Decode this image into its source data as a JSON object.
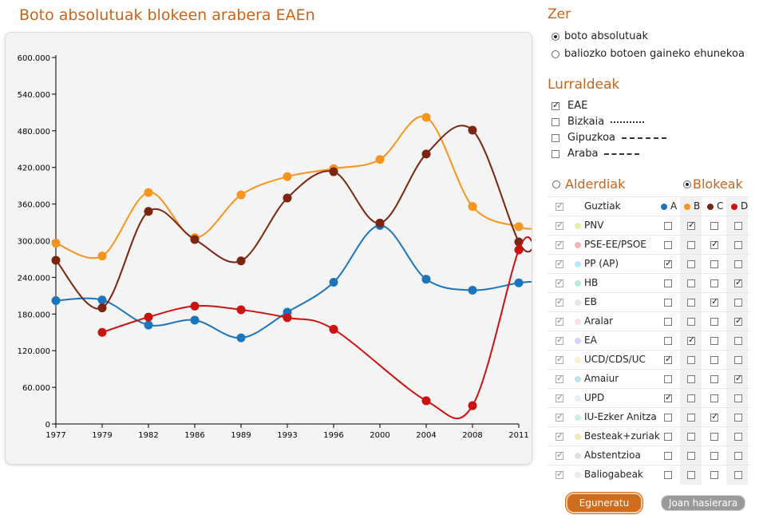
{
  "title": "Boto absolutuak blokeen arabera EAEn",
  "chart_data": {
    "type": "line",
    "title": "Boto absolutuak blokeen arabera EAEn",
    "xlabel": "",
    "ylabel": "",
    "ylim": [
      0,
      600000
    ],
    "y_ticks": [
      "0",
      "60.000",
      "120.000",
      "180.000",
      "240.000",
      "300.000",
      "360.000",
      "420.000",
      "480.000",
      "540.000",
      "600.000"
    ],
    "x_tick_labels": [
      "1977",
      "1979",
      "1982",
      "1986",
      "1989",
      "1993",
      "1996",
      "2000",
      "2004",
      "2008",
      "2011"
    ],
    "x_values": [
      1977,
      1979,
      1982,
      1986,
      1989,
      1993,
      1996,
      2000,
      2004,
      2008,
      2011
    ],
    "series": [
      {
        "name": "A",
        "color": "#1b75bc",
        "values": [
          202000,
          203000,
          162000,
          170000,
          141000,
          183000,
          232000,
          325000,
          237000,
          219000,
          231000
        ],
        "trail": 233000
      },
      {
        "name": "B",
        "color": "#f7941d",
        "values": [
          296000,
          275000,
          379000,
          305000,
          375000,
          405000,
          418000,
          433000,
          502000,
          356000,
          323000
        ],
        "trail": 320000
      },
      {
        "name": "C",
        "color": "#7b2410",
        "values": [
          268000,
          190000,
          348000,
          302000,
          267000,
          370000,
          413000,
          329000,
          442000,
          481000,
          298000
        ],
        "trail": 290000
      },
      {
        "name": "D",
        "color": "#cc1111",
        "values": [
          null,
          150000,
          175000,
          193000,
          187000,
          174000,
          155000,
          null,
          38000,
          30000,
          285000
        ],
        "trail": 292000
      }
    ]
  },
  "zer": {
    "heading": "Zer",
    "options": [
      {
        "label": "boto absolutuak",
        "selected": true
      },
      {
        "label": "baliozko botoen gaineko ehunekoa",
        "selected": false
      }
    ]
  },
  "lurraldeak": {
    "heading": "Lurraldeak",
    "items": [
      {
        "label": "EAE",
        "checked": true
      },
      {
        "label": "Bizkaia",
        "checked": false
      },
      {
        "label": "Gipuzkoa",
        "checked": false
      },
      {
        "label": "Araba",
        "checked": false
      }
    ]
  },
  "group_mode": {
    "alderdiak_label": "Alderdiak",
    "blokeak_label": "Blokeak",
    "selected": "Blokeak"
  },
  "table": {
    "all_label": "Guztiak",
    "blocks": [
      {
        "label": "A",
        "color": "#1b75bc"
      },
      {
        "label": "B",
        "color": "#f7941d"
      },
      {
        "label": "C",
        "color": "#7b2410"
      },
      {
        "label": "D",
        "color": "#cc1111"
      }
    ],
    "rows": [
      {
        "name": "PNV",
        "color": "#e4f0a6",
        "block": "B"
      },
      {
        "name": "PSE-EE/PSOE",
        "color": "#f5b3b3",
        "block": "C"
      },
      {
        "name": "PP (AP)",
        "color": "#b8e8f7",
        "block": "A"
      },
      {
        "name": "HB",
        "color": "#b3ecd6",
        "block": "D"
      },
      {
        "name": "EB",
        "color": "#efe0f5",
        "block": "C"
      },
      {
        "name": "Aralar",
        "color": "#fbdfe7",
        "block": "D"
      },
      {
        "name": "EA",
        "color": "#d6d2f7",
        "block": "B"
      },
      {
        "name": "UCD/CDS/UC",
        "color": "#fbf0cd",
        "block": "A"
      },
      {
        "name": "Amaiur",
        "color": "#bfe1ef",
        "block": "D"
      },
      {
        "name": "UPD",
        "color": "#e4f0f9",
        "block": "A"
      },
      {
        "name": "IU-Ezker Anitza",
        "color": "#cdeee3",
        "block": "C"
      },
      {
        "name": "Besteak+zuriak",
        "color": "#f3e8b2",
        "block": ""
      },
      {
        "name": "Abstentzioa",
        "color": "#e1e1e1",
        "block": ""
      },
      {
        "name": "Baliogabeak",
        "color": "#ececec",
        "block": ""
      }
    ]
  },
  "buttons": {
    "update": "Eguneratu",
    "home": "Joan hasierara"
  }
}
